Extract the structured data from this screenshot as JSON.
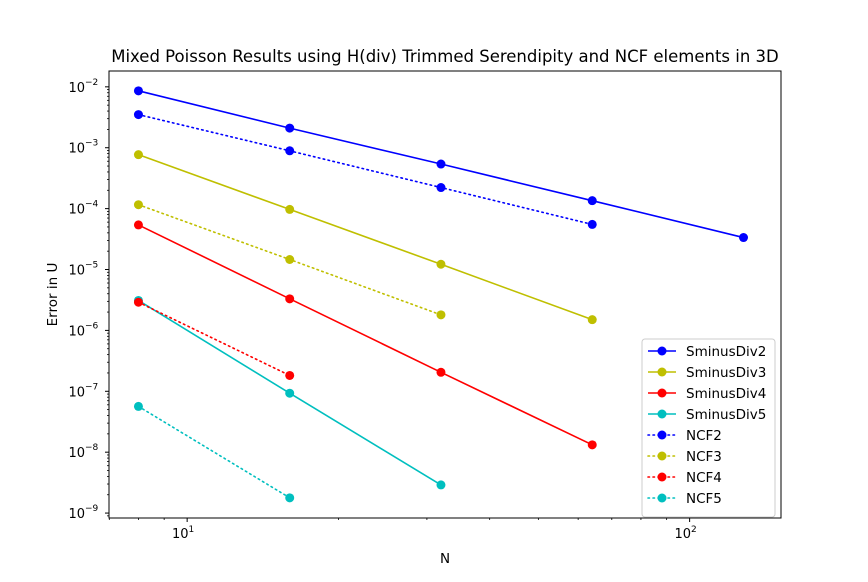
{
  "chart_data": {
    "type": "line",
    "title": "Mixed Poisson Results using H(div) Trimmed Serendipity and NCF elements in 3D",
    "xlabel": "N",
    "ylabel": "Error in U",
    "xscale": "log",
    "yscale": "log",
    "xlim": [
      6.99,
      152
    ],
    "ylim": [
      8.3e-10,
      0.0182
    ],
    "grid": false,
    "legend_position": "lower-right",
    "x_ticks": [
      {
        "value": 10,
        "label": "10",
        "sup": "1"
      },
      {
        "value": 100,
        "label": "10",
        "sup": "2"
      }
    ],
    "y_ticks": [
      {
        "value": 1e-09,
        "label": "10",
        "sup": "−9"
      },
      {
        "value": 1e-08,
        "label": "10",
        "sup": "−8"
      },
      {
        "value": 1e-07,
        "label": "10",
        "sup": "−7"
      },
      {
        "value": 1e-06,
        "label": "10",
        "sup": "−6"
      },
      {
        "value": 1e-05,
        "label": "10",
        "sup": "−5"
      },
      {
        "value": 0.0001,
        "label": "10",
        "sup": "−4"
      },
      {
        "value": 0.001,
        "label": "10",
        "sup": "−3"
      },
      {
        "value": 0.01,
        "label": "10",
        "sup": "−2"
      }
    ],
    "series": [
      {
        "name": "SminusDiv2",
        "color": "#0000ff",
        "style": "solid",
        "x": [
          8,
          16,
          32,
          64,
          128
        ],
        "y": [
          0.0086,
          0.0021,
          0.00054,
          0.000135,
          3.35e-05
        ]
      },
      {
        "name": "SminusDiv3",
        "color": "#bfbf00",
        "style": "solid",
        "x": [
          8,
          16,
          32,
          64
        ],
        "y": [
          0.00077,
          9.7e-05,
          1.22e-05,
          1.5e-06
        ]
      },
      {
        "name": "SminusDiv4",
        "color": "#ff0000",
        "style": "solid",
        "x": [
          8,
          16,
          32,
          64
        ],
        "y": [
          5.4e-05,
          3.3e-06,
          2.05e-07,
          1.32e-08
        ]
      },
      {
        "name": "SminusDiv5",
        "color": "#00bfbf",
        "style": "solid",
        "x": [
          8,
          16,
          32
        ],
        "y": [
          3.1e-06,
          9.3e-08,
          2.9e-09
        ]
      },
      {
        "name": "NCF2",
        "color": "#0000ff",
        "style": "dotted",
        "x": [
          8,
          16,
          32,
          64
        ],
        "y": [
          0.0035,
          0.00089,
          0.000222,
          5.5e-05
        ]
      },
      {
        "name": "NCF3",
        "color": "#bfbf00",
        "style": "dotted",
        "x": [
          8,
          16,
          32
        ],
        "y": [
          0.000116,
          1.46e-05,
          1.8e-06
        ]
      },
      {
        "name": "NCF4",
        "color": "#ff0000",
        "style": "dotted",
        "x": [
          8,
          16
        ],
        "y": [
          2.9e-06,
          1.82e-07
        ]
      },
      {
        "name": "NCF5",
        "color": "#00bfbf",
        "style": "dotted",
        "x": [
          8,
          16
        ],
        "y": [
          5.65e-08,
          1.78e-09
        ]
      }
    ]
  }
}
